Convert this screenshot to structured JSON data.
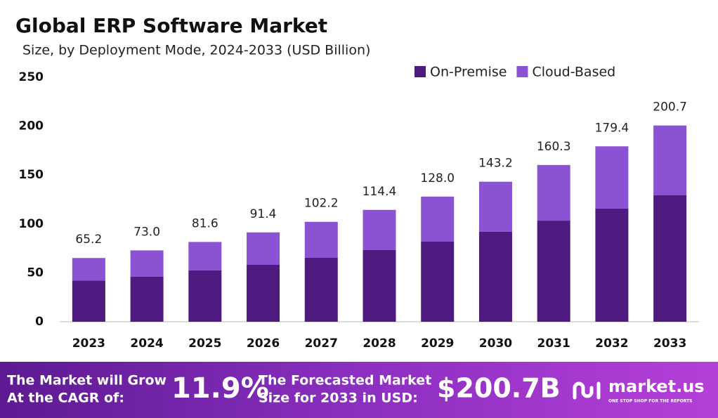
{
  "chart_data": {
    "type": "stacked-bar",
    "title": "Global ERP Software Market",
    "subtitle": "Size, by Deployment Mode, 2024-2033 (USD Billion)",
    "categories": [
      "2023",
      "2024",
      "2025",
      "2026",
      "2027",
      "2028",
      "2029",
      "2030",
      "2031",
      "2032",
      "2033"
    ],
    "series": [
      {
        "name": "On-Premise",
        "color": "#4e1a80",
        "values": [
          42,
          46,
          52.5,
          58.2,
          65.4,
          73.3,
          81.9,
          92,
          103.4,
          115.7,
          129.3
        ]
      },
      {
        "name": "Cloud-Based",
        "color": "#8b52d3",
        "values": [
          23.2,
          27,
          29.1,
          33.2,
          36.8,
          41.1,
          46.1,
          51.2,
          56.9,
          63.7,
          71.4
        ]
      }
    ],
    "totals": [
      65.2,
      {
        "value": 73,
        "label": "73.0"
      },
      81.6,
      91.4,
      102.2,
      114.4,
      {
        "value": 128,
        "label": "128.0"
      },
      143.2,
      160.3,
      179.4,
      200.7
    ],
    "ylim": [
      0,
      250
    ],
    "yticks": [
      0,
      50,
      100,
      150,
      200,
      250
    ],
    "grid": false,
    "legend": "top-right"
  },
  "footer": {
    "cagr_text": [
      "The Market will Grow",
      "At the CAGR of:"
    ],
    "cagr": "11.9%",
    "forecast_text": [
      "The Forecasted Market",
      "Size for 2033 in USD:"
    ],
    "forecast": "$200.7B",
    "brand": "market.us",
    "tagline": "ONE STOP SHOP FOR THE REPORTS"
  }
}
